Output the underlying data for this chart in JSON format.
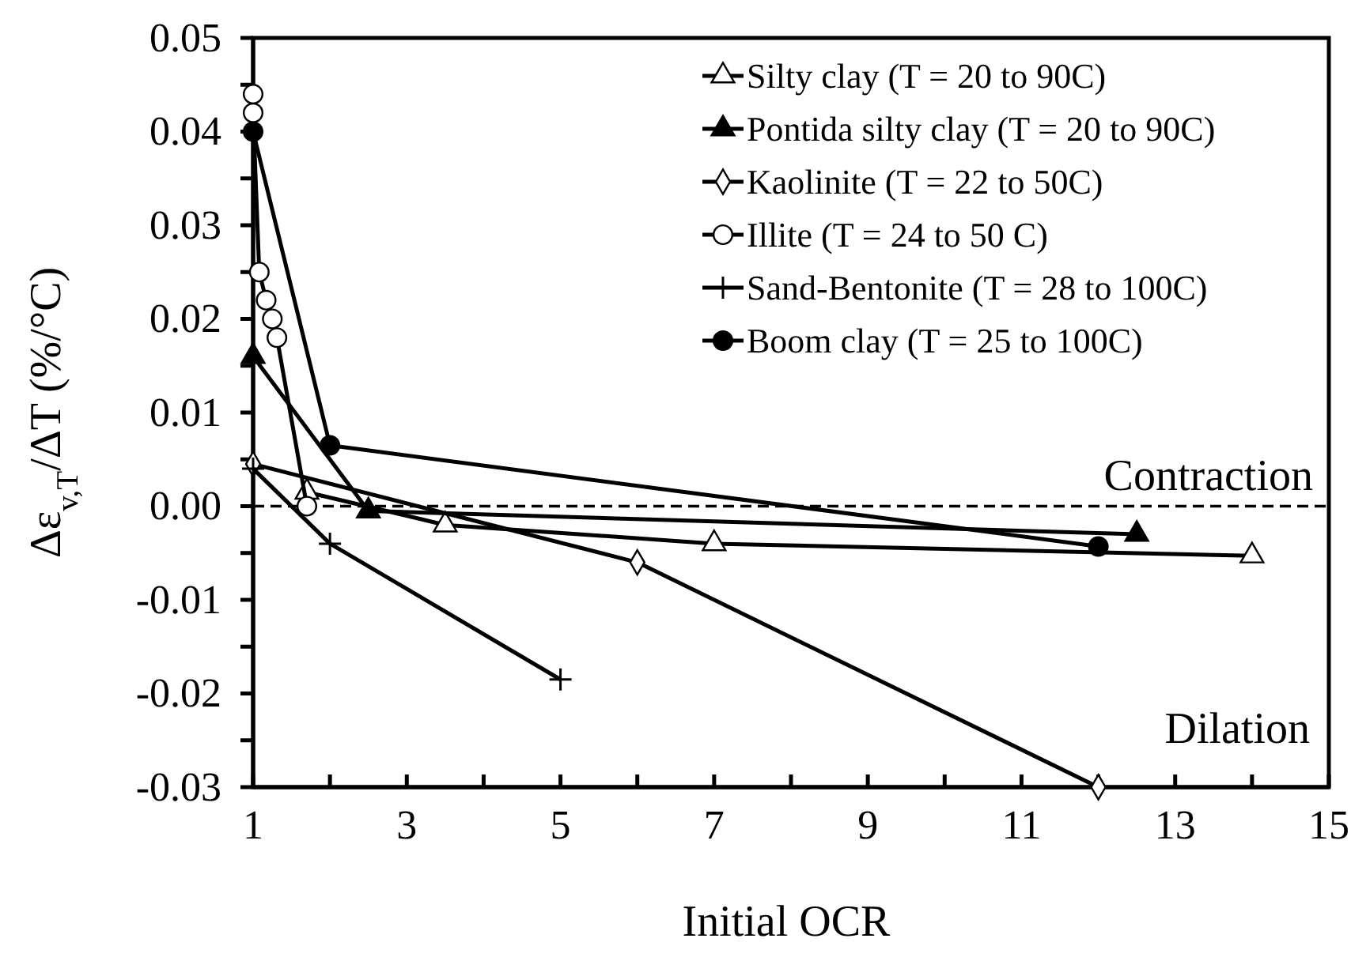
{
  "chart_data": {
    "type": "line",
    "xlabel": "Initial OCR",
    "ylabel": "Δε$_{v,T}$/ΔT (%/°C)",
    "xlim": [
      1,
      15
    ],
    "ylim": [
      -0.03,
      0.05
    ],
    "xticks": [
      1,
      {
        "value": 2,
        "label": null
      },
      3,
      {
        "value": 4,
        "label": null
      },
      5,
      {
        "value": 6,
        "label": null
      },
      7,
      {
        "value": 8,
        "label": null
      },
      9,
      {
        "value": 10,
        "label": null
      },
      11,
      {
        "value": 12,
        "label": null
      },
      13,
      {
        "value": 14,
        "label": null
      },
      15
    ],
    "yticks": [
      {
        "value": -0.03,
        "label": "-0.03"
      },
      {
        "value": -0.025,
        "label": null
      },
      {
        "value": -0.02,
        "label": "-0.02"
      },
      {
        "value": -0.015,
        "label": null
      },
      {
        "value": -0.01,
        "label": "-0.01"
      },
      {
        "value": -0.005,
        "label": null
      },
      {
        "value": 0,
        "label": "0.00"
      },
      {
        "value": 0.005,
        "label": null
      },
      {
        "value": 0.01,
        "label": "0.01"
      },
      {
        "value": 0.015,
        "label": null
      },
      {
        "value": 0.02,
        "label": "0.02"
      },
      {
        "value": 0.025,
        "label": null
      },
      {
        "value": 0.03,
        "label": "0.03"
      },
      {
        "value": 0.035,
        "label": null
      },
      {
        "value": 0.04,
        "label": "0.04"
      },
      {
        "value": 0.045,
        "label": null
      },
      {
        "value": 0.05,
        "label": "0.05"
      }
    ],
    "grid": false,
    "legend": "top right",
    "line_style": "solid",
    "series": [
      {
        "name": "Silty clay (T = 20 to 90C)",
        "color": "#000000",
        "marker": "triangle-open",
        "x": [
          1.7,
          3.5,
          7,
          14
        ],
        "values": [
          0.0015,
          -0.002,
          -0.004,
          -0.0053
        ]
      },
      {
        "name": "Pontida silty clay (T = 20 to 90C)",
        "color": "#000000",
        "marker": "triangle",
        "x": [
          1,
          2.5,
          12.5
        ],
        "values": [
          0.016,
          -0.0005,
          -0.003
        ]
      },
      {
        "name": "Kaolinite (T = 22 to 50C)",
        "color": "#000000",
        "marker": "diamond-open",
        "x": [
          1,
          6,
          12
        ],
        "values": [
          0.0045,
          -0.006,
          -0.03
        ]
      },
      {
        "name": "Illite (T = 24 to 50 C)",
        "color": "#000000",
        "marker": "circle-open",
        "x": [
          1,
          1,
          1.08,
          1.17,
          1.25,
          1.31,
          1.7
        ],
        "values": [
          0.044,
          0.042,
          0.025,
          0.022,
          0.02,
          0.018,
          0
        ]
      },
      {
        "name": "Sand-Bentonite (T = 28 to 100C)",
        "color": "#000000",
        "marker": "cross",
        "x": [
          1,
          2,
          5
        ],
        "values": [
          0.004,
          -0.004,
          -0.0185
        ]
      },
      {
        "name": "Boom clay (T = 25 to 100C)",
        "color": "#000000",
        "marker": "circle",
        "x": [
          1,
          2,
          12
        ],
        "values": [
          0.04,
          0.0065,
          -0.0043
        ]
      }
    ],
    "ref_lines": [
      {
        "axis": "y",
        "value": 0,
        "line_style": "dashed",
        "color": "#000000"
      }
    ],
    "annotations": [
      "Contraction",
      "Dilation"
    ]
  }
}
